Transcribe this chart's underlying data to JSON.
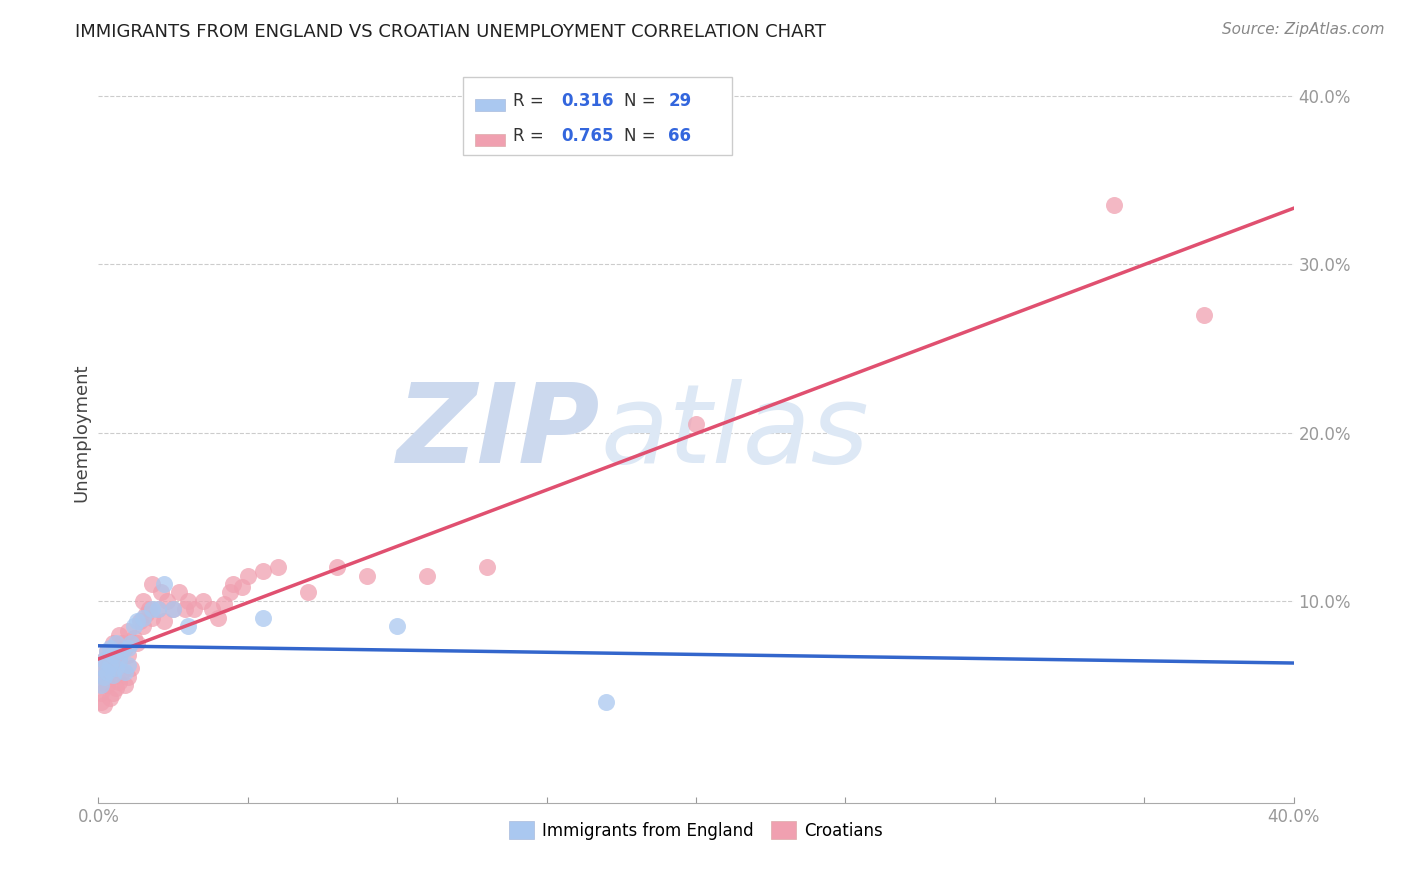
{
  "title": "IMMIGRANTS FROM ENGLAND VS CROATIAN UNEMPLOYMENT CORRELATION CHART",
  "source": "Source: ZipAtlas.com",
  "ylabel": "Unemployment",
  "xlim": [
    0.0,
    0.4
  ],
  "ylim": [
    -0.02,
    0.42
  ],
  "ytick_positions": [
    0.1,
    0.2,
    0.3,
    0.4
  ],
  "ytick_labels": [
    "10.0%",
    "20.0%",
    "30.0%",
    "40.0%"
  ],
  "xtick_positions": [
    0.0,
    0.4
  ],
  "xtick_labels": [
    "0.0%",
    "40.0%"
  ],
  "background_color": "#ffffff",
  "grid_color": "#cccccc",
  "watermark_zip": "ZIP",
  "watermark_atlas": "atlas",
  "watermark_color": "#ccd9ee",
  "england_scatter_color": "#aac8f0",
  "england_line_color": "#3366cc",
  "england_R": "0.316",
  "england_N": "29",
  "croatian_scatter_color": "#f0a0b0",
  "croatian_line_color": "#e05070",
  "croatian_R": "0.765",
  "croatian_N": "66",
  "legend_R_N_color": "#3366dd",
  "legend_text_color": "#333333",
  "england_x": [
    0.001,
    0.001,
    0.002,
    0.002,
    0.003,
    0.003,
    0.004,
    0.004,
    0.005,
    0.005,
    0.006,
    0.006,
    0.007,
    0.008,
    0.009,
    0.01,
    0.01,
    0.011,
    0.012,
    0.013,
    0.015,
    0.018,
    0.02,
    0.022,
    0.025,
    0.03,
    0.055,
    0.1,
    0.17
  ],
  "england_y": [
    0.05,
    0.06,
    0.055,
    0.065,
    0.058,
    0.07,
    0.062,
    0.072,
    0.056,
    0.068,
    0.06,
    0.075,
    0.065,
    0.07,
    0.058,
    0.062,
    0.072,
    0.075,
    0.085,
    0.088,
    0.09,
    0.095,
    0.095,
    0.11,
    0.095,
    0.085,
    0.09,
    0.085,
    0.04
  ],
  "croatian_x": [
    0.001,
    0.001,
    0.001,
    0.001,
    0.002,
    0.002,
    0.002,
    0.003,
    0.003,
    0.003,
    0.004,
    0.004,
    0.004,
    0.005,
    0.005,
    0.005,
    0.005,
    0.006,
    0.006,
    0.007,
    0.007,
    0.007,
    0.008,
    0.008,
    0.009,
    0.009,
    0.01,
    0.01,
    0.01,
    0.011,
    0.012,
    0.013,
    0.014,
    0.015,
    0.015,
    0.016,
    0.017,
    0.018,
    0.018,
    0.02,
    0.021,
    0.022,
    0.023,
    0.025,
    0.027,
    0.029,
    0.03,
    0.032,
    0.035,
    0.038,
    0.04,
    0.042,
    0.044,
    0.045,
    0.048,
    0.05,
    0.055,
    0.06,
    0.07,
    0.08,
    0.09,
    0.11,
    0.13,
    0.2,
    0.34,
    0.37
  ],
  "croatian_y": [
    0.04,
    0.045,
    0.05,
    0.06,
    0.038,
    0.055,
    0.065,
    0.05,
    0.06,
    0.07,
    0.042,
    0.058,
    0.068,
    0.045,
    0.055,
    0.065,
    0.075,
    0.048,
    0.07,
    0.052,
    0.065,
    0.08,
    0.058,
    0.075,
    0.05,
    0.072,
    0.055,
    0.068,
    0.082,
    0.06,
    0.078,
    0.075,
    0.088,
    0.085,
    0.1,
    0.092,
    0.095,
    0.09,
    0.11,
    0.095,
    0.105,
    0.088,
    0.1,
    0.095,
    0.105,
    0.095,
    0.1,
    0.095,
    0.1,
    0.095,
    0.09,
    0.098,
    0.105,
    0.11,
    0.108,
    0.115,
    0.118,
    0.12,
    0.105,
    0.12,
    0.115,
    0.115,
    0.12,
    0.205,
    0.335,
    0.27
  ]
}
